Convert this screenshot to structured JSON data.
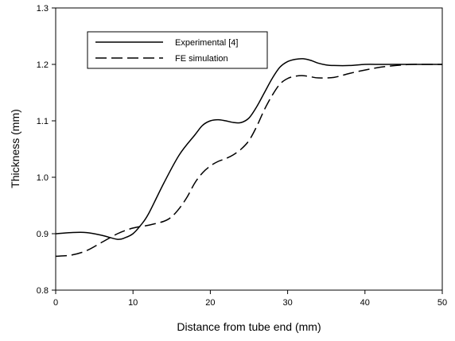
{
  "chart_data": {
    "type": "line",
    "xlabel": "Distance from tube end (mm)",
    "ylabel": "Thickness (mm)",
    "xlim": [
      0,
      50
    ],
    "ylim": [
      0.8,
      1.3
    ],
    "xticks": [
      0,
      10,
      20,
      30,
      40,
      50
    ],
    "yticks": [
      0.8,
      0.9,
      1.0,
      1.1,
      1.2,
      1.3
    ],
    "xtick_labels": [
      "0",
      "10",
      "20",
      "30",
      "40",
      "50"
    ],
    "ytick_labels": [
      "0.8",
      "0.9",
      "1.0",
      "1.1",
      "1.2",
      "1.3"
    ],
    "grid": false,
    "legend_position": "top-left",
    "series": [
      {
        "name": "Experimental [4]",
        "style": "solid",
        "color": "#000000",
        "x": [
          0,
          2,
          4,
          6,
          8,
          9,
          10,
          11,
          12,
          14,
          16,
          18,
          19,
          20,
          21,
          22,
          23,
          24,
          25,
          26,
          27,
          28,
          29,
          30,
          31,
          32,
          33,
          34,
          35,
          36,
          38,
          40,
          42,
          44,
          46,
          48,
          50
        ],
        "y": [
          0.9,
          0.902,
          0.902,
          0.897,
          0.89,
          0.893,
          0.9,
          0.915,
          0.935,
          0.99,
          1.04,
          1.075,
          1.092,
          1.1,
          1.102,
          1.1,
          1.097,
          1.097,
          1.105,
          1.125,
          1.15,
          1.175,
          1.195,
          1.205,
          1.209,
          1.21,
          1.207,
          1.202,
          1.199,
          1.198,
          1.198,
          1.2,
          1.2,
          1.2,
          1.2,
          1.2,
          1.2
        ]
      },
      {
        "name": "FE simulation",
        "style": "dashed",
        "color": "#000000",
        "x": [
          0,
          2,
          4,
          6,
          8,
          10,
          12,
          14,
          15,
          16,
          17,
          18,
          19,
          20,
          21,
          22,
          23,
          24,
          25,
          26,
          27,
          28,
          29,
          30,
          31,
          32,
          33,
          34,
          36,
          38,
          40,
          42,
          44,
          46,
          48,
          50
        ],
        "y": [
          0.86,
          0.862,
          0.87,
          0.885,
          0.9,
          0.91,
          0.915,
          0.922,
          0.93,
          0.945,
          0.965,
          0.99,
          1.008,
          1.02,
          1.028,
          1.033,
          1.04,
          1.05,
          1.065,
          1.09,
          1.12,
          1.145,
          1.165,
          1.175,
          1.179,
          1.18,
          1.178,
          1.176,
          1.177,
          1.184,
          1.19,
          1.195,
          1.198,
          1.2,
          1.2,
          1.2
        ]
      }
    ]
  }
}
